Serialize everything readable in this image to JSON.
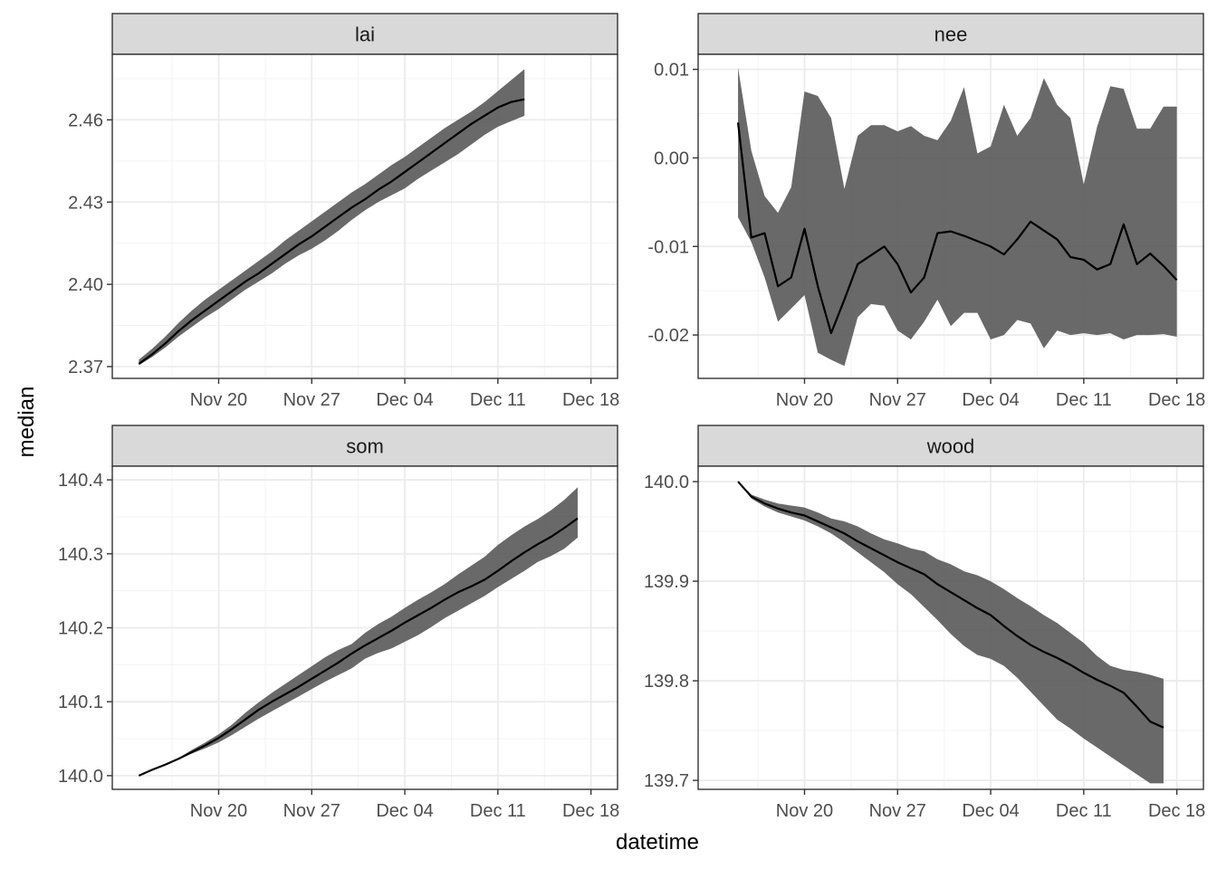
{
  "chart_data": {
    "type": "line",
    "layout": "facet 2x2, free y scales",
    "xlabel": "datetime",
    "ylabel": "median",
    "grid": true,
    "x_ticks": [
      {
        "date": "2023-11-20",
        "label": "Nov 20"
      },
      {
        "date": "2023-11-27",
        "label": "Nov 27"
      },
      {
        "date": "2023-12-04",
        "label": "Dec 04"
      },
      {
        "date": "2023-12-11",
        "label": "Dec 11"
      },
      {
        "date": "2023-12-18",
        "label": "Dec 18"
      }
    ],
    "xlim": [
      "2023-11-12",
      "2023-12-20"
    ],
    "colors": {
      "ribbon": "#595959",
      "line": "#000000",
      "strip": "#d9d9d9"
    },
    "panels": [
      {
        "name": "lai",
        "ylim": [
          2.3657,
          2.4839
        ],
        "y_ticks": [
          2.37,
          2.4,
          2.43,
          2.46
        ],
        "y_tick_labels": [
          "2.37",
          "2.40",
          "2.43",
          "2.46"
        ],
        "x_start": "2023-11-14",
        "median": [
          2.371,
          2.3745,
          2.3785,
          2.383,
          2.387,
          2.3905,
          2.394,
          2.3975,
          2.401,
          2.404,
          2.4075,
          2.411,
          2.4145,
          2.4175,
          2.421,
          2.4245,
          2.428,
          2.431,
          2.4345,
          2.4375,
          2.441,
          2.4445,
          2.448,
          2.4515,
          2.455,
          2.4585,
          2.4615,
          2.4645,
          2.4665,
          2.4675
        ],
        "lower": [
          2.3705,
          2.3735,
          2.377,
          2.381,
          2.3845,
          2.388,
          2.391,
          2.3945,
          2.398,
          2.401,
          2.404,
          2.4075,
          2.4105,
          2.413,
          2.416,
          2.4195,
          2.4235,
          2.427,
          2.43,
          2.4325,
          2.435,
          2.4385,
          2.4415,
          2.4445,
          2.4475,
          2.451,
          2.4545,
          2.4575,
          2.4595,
          2.4615
        ],
        "upper": [
          2.3725,
          2.3765,
          2.381,
          2.386,
          2.3905,
          2.3945,
          2.398,
          2.4015,
          2.405,
          2.4085,
          2.412,
          2.416,
          2.4195,
          2.423,
          2.4265,
          2.43,
          2.4335,
          2.4365,
          2.44,
          2.4435,
          2.4465,
          2.45,
          2.4535,
          2.457,
          2.46,
          2.463,
          2.4665,
          2.4705,
          2.4745,
          2.4785
        ]
      },
      {
        "name": "nee",
        "ylim": [
          -0.0249,
          0.0117
        ],
        "y_ticks": [
          -0.02,
          -0.01,
          0.0,
          0.01
        ],
        "y_tick_labels": [
          "-0.02",
          "-0.01",
          "0.00",
          "0.01"
        ],
        "x_start": "2023-11-15",
        "median": [
          0.004,
          -0.009,
          -0.0085,
          -0.0145,
          -0.0135,
          -0.008,
          -0.0145,
          -0.0198,
          -0.016,
          -0.012,
          -0.011,
          -0.01,
          -0.012,
          -0.0152,
          -0.0135,
          -0.0085,
          -0.0083,
          -0.0088,
          -0.0094,
          -0.01,
          -0.0109,
          -0.0092,
          -0.0072,
          -0.0082,
          -0.0092,
          -0.0112,
          -0.0115,
          -0.0126,
          -0.012,
          -0.0075,
          -0.012,
          -0.0108,
          -0.0122,
          -0.0138
        ],
        "lower": [
          -0.0067,
          -0.0095,
          -0.0135,
          -0.0185,
          -0.017,
          -0.0155,
          -0.022,
          -0.0228,
          -0.0235,
          -0.018,
          -0.0165,
          -0.0167,
          -0.0195,
          -0.0205,
          -0.0185,
          -0.016,
          -0.019,
          -0.0175,
          -0.0175,
          -0.0205,
          -0.02,
          -0.0183,
          -0.0187,
          -0.0215,
          -0.0195,
          -0.02,
          -0.0198,
          -0.02,
          -0.0198,
          -0.0205,
          -0.02,
          -0.02,
          -0.0199,
          -0.0202
        ],
        "upper": [
          0.0102,
          0.0008,
          -0.0043,
          -0.0062,
          -0.0033,
          0.0075,
          0.007,
          0.0045,
          -0.0035,
          0.0025,
          0.0037,
          0.0037,
          0.003,
          0.0036,
          0.0025,
          0.002,
          0.0042,
          0.008,
          0.0005,
          0.0013,
          0.006,
          0.0025,
          0.0045,
          0.009,
          0.006,
          0.0045,
          -0.003,
          0.0035,
          0.0081,
          0.0078,
          0.0033,
          0.0033,
          0.0058,
          0.0058
        ]
      },
      {
        "name": "som",
        "ylim": [
          139.9815,
          140.4185
        ],
        "y_ticks": [
          140.0,
          140.1,
          140.2,
          140.3,
          140.4
        ],
        "y_tick_labels": [
          "140.0",
          "140.1",
          "140.2",
          "140.3",
          "140.4"
        ],
        "x_start": "2023-11-14",
        "median": [
          140.0,
          140.008,
          140.015,
          140.023,
          140.032,
          140.041,
          140.051,
          140.063,
          140.076,
          140.089,
          140.1,
          140.11,
          140.12,
          140.131,
          140.142,
          140.153,
          140.165,
          140.176,
          140.186,
          140.196,
          140.207,
          140.217,
          140.227,
          140.238,
          140.248,
          140.256,
          140.265,
          140.277,
          140.29,
          140.302,
          140.313,
          140.323,
          140.335,
          140.348
        ],
        "lower": [
          140.0,
          140.007,
          140.014,
          140.022,
          140.03,
          140.037,
          140.045,
          140.055,
          140.066,
          140.077,
          140.087,
          140.097,
          140.107,
          140.117,
          140.127,
          140.136,
          140.145,
          140.158,
          140.166,
          140.172,
          140.181,
          140.19,
          140.201,
          140.213,
          140.223,
          140.233,
          140.243,
          140.255,
          140.266,
          140.277,
          140.289,
          140.297,
          140.307,
          140.322
        ],
        "upper": [
          140.0,
          140.009,
          140.016,
          140.024,
          140.035,
          140.045,
          140.056,
          140.069,
          140.085,
          140.099,
          140.112,
          140.124,
          140.136,
          140.148,
          140.16,
          140.17,
          140.178,
          140.193,
          140.205,
          140.215,
          140.227,
          140.238,
          140.248,
          140.259,
          140.272,
          140.284,
          140.296,
          140.312,
          140.325,
          140.337,
          140.347,
          140.359,
          140.373,
          140.39
        ]
      },
      {
        "name": "wood",
        "ylim": [
          139.691,
          140.0155
        ],
        "y_ticks": [
          139.7,
          139.8,
          139.9,
          140.0
        ],
        "y_tick_labels": [
          "139.7",
          "139.8",
          "139.9",
          "140.0"
        ],
        "x_start": "2023-11-15",
        "median": [
          140.0,
          139.985,
          139.978,
          139.973,
          139.969,
          139.966,
          139.96,
          139.954,
          139.948,
          139.94,
          139.933,
          139.926,
          139.919,
          139.913,
          139.907,
          139.897,
          139.889,
          139.881,
          139.873,
          139.866,
          139.855,
          139.845,
          139.836,
          139.829,
          139.823,
          139.816,
          139.808,
          139.801,
          139.795,
          139.788,
          139.774,
          139.759,
          139.753
        ],
        "lower": [
          140.0,
          139.983,
          139.975,
          139.969,
          139.965,
          139.961,
          139.955,
          139.948,
          139.939,
          139.929,
          139.919,
          139.909,
          139.897,
          139.887,
          139.874,
          139.861,
          139.847,
          139.835,
          139.826,
          139.822,
          139.815,
          139.803,
          139.789,
          139.775,
          139.761,
          139.752,
          139.742,
          139.733,
          139.724,
          139.715,
          139.706,
          139.697,
          139.697
        ],
        "upper": [
          140.0,
          139.987,
          139.982,
          139.978,
          139.976,
          139.974,
          139.969,
          139.963,
          139.96,
          139.955,
          139.948,
          139.942,
          139.938,
          139.933,
          139.93,
          139.922,
          139.917,
          139.91,
          139.906,
          139.9,
          139.892,
          139.883,
          139.875,
          139.866,
          139.858,
          139.848,
          139.838,
          139.825,
          139.815,
          139.811,
          139.809,
          139.806,
          139.802
        ]
      }
    ]
  }
}
